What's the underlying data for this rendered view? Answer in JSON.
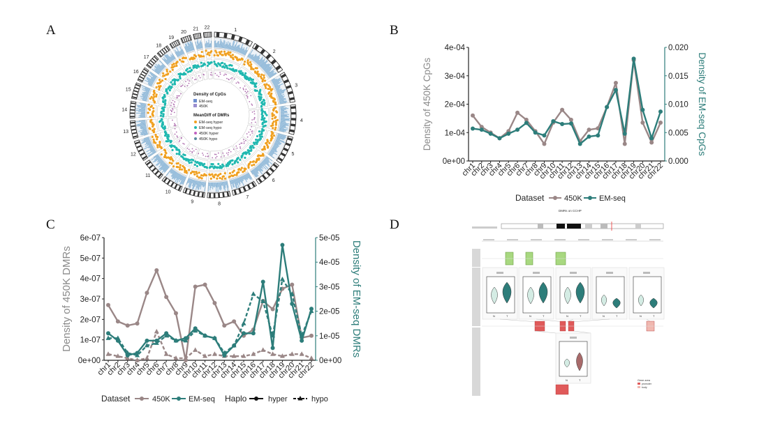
{
  "colors": {
    "k450": "#9a8787",
    "emseq": "#2d7d7a",
    "orange": "#f0a020",
    "lightblue": "#8fb8d8",
    "green": "#a8d880",
    "red": "#e05a5a",
    "pink": "#f0b8b0",
    "gray": "#d8d8d8"
  },
  "panels": {
    "A": "A",
    "B": "B",
    "C": "C",
    "D": "D"
  },
  "panelA": {
    "legend_title1": "Density of CpGs",
    "legend_items1": [
      "EM-seq",
      "450K"
    ],
    "legend_title2": "MeanDiff of DMRs",
    "legend_items2": [
      "EM-seq hyper",
      "EM-seq hypo",
      "450K hyper",
      "450K hypo"
    ],
    "chrom_labels": [
      "1",
      "2",
      "3",
      "4",
      "5",
      "6",
      "7",
      "8",
      "9",
      "10",
      "11",
      "12",
      "13",
      "14",
      "15",
      "16",
      "17",
      "18",
      "19",
      "20",
      "21",
      "22"
    ]
  },
  "chart_data": [
    {
      "type": "line",
      "panel": "B",
      "categories": [
        "chr1",
        "chr2",
        "chr3",
        "chr4",
        "chr5",
        "chr6",
        "chr7",
        "chr8",
        "chr9",
        "chr10",
        "chr11",
        "chr12",
        "chr13",
        "chr14",
        "chr15",
        "chr16",
        "chr17",
        "chr18",
        "chr19",
        "chr20",
        "chr21",
        "chr22"
      ],
      "series": [
        {
          "name": "450K",
          "axis": "left",
          "values": [
            0.00016,
            0.00012,
            0.0001,
            8e-05,
            0.000105,
            0.00017,
            0.000145,
            0.000105,
            6e-05,
            0.000135,
            0.00018,
            0.000145,
            7e-05,
            0.00011,
            0.000115,
            0.00019,
            0.000275,
            6e-05,
            0.000355,
            0.000135,
            6.5e-05,
            0.000135
          ]
        },
        {
          "name": "EM-seq",
          "axis": "right",
          "values": [
            0.0057,
            0.0055,
            0.0048,
            0.004,
            0.0048,
            0.0055,
            0.0067,
            0.005,
            0.0045,
            0.007,
            0.0065,
            0.0066,
            0.003,
            0.0043,
            0.0045,
            0.0095,
            0.0125,
            0.0048,
            0.018,
            0.009,
            0.004,
            0.0087
          ]
        }
      ],
      "ylabel_left": "Density of 450K CpGs",
      "ylabel_right": "Density of EM-seq CpGs",
      "ylim_left": [
        0,
        0.0004
      ],
      "ylim_right": [
        0,
        0.02
      ],
      "yticks_left": [
        "0e+00",
        "1e-04",
        "2e-04",
        "3e-04",
        "4e-04"
      ],
      "yticks_right": [
        "0.000",
        "0.005",
        "0.010",
        "0.015",
        "0.020"
      ],
      "legend_title": "Dataset",
      "legend": [
        "450K",
        "EM-seq"
      ]
    },
    {
      "type": "line",
      "panel": "C",
      "categories": [
        "chr1",
        "chr2",
        "chr3",
        "chr4",
        "chr5",
        "chr6",
        "chr7",
        "chr8",
        "chr9",
        "chr10",
        "chr11",
        "chr12",
        "chr13",
        "chr14",
        "chr15",
        "chr16",
        "chr17",
        "chr18",
        "chr19",
        "chr20",
        "chr21",
        "chr22"
      ],
      "series": [
        {
          "name": "450K hyper",
          "axis": "left",
          "style": "solid",
          "values": [
            2.7e-07,
            1.9e-07,
            1.7e-07,
            1.8e-07,
            3.3e-07,
            4.4e-07,
            3.1e-07,
            2.3e-07,
            0.0,
            3.6e-07,
            3.7e-07,
            2.8e-07,
            1.7e-07,
            1.9e-07,
            1.2e-07,
            1.5e-07,
            2.9e-07,
            2.5e-07,
            3.5e-07,
            3.7e-07,
            1.1e-07,
            1.2e-07
          ]
        },
        {
          "name": "450K hypo",
          "axis": "left",
          "style": "dashed",
          "values": [
            3e-08,
            2e-08,
            1e-08,
            0.0,
            1e-08,
            1.4e-07,
            3e-08,
            1e-08,
            1e-08,
            5e-08,
            2e-08,
            3e-08,
            2e-08,
            2e-08,
            2e-08,
            3e-08,
            5e-08,
            3e-08,
            2e-08,
            3e-08,
            3e-08,
            1e-08
          ]
        },
        {
          "name": "EM-seq hyper",
          "axis": "right",
          "style": "solid",
          "values": [
            1.1e-05,
            8e-06,
            2e-06,
            3e-06,
            8e-06,
            8e-06,
            1.1e-05,
            8e-06,
            9e-06,
            1.3e-05,
            1e-05,
            9e-06,
            2e-06,
            6e-06,
            1.1e-05,
            1.1e-05,
            3.2e-05,
            5e-06,
            4.7e-05,
            2.3e-05,
            8e-06,
            2.1e-05
          ]
        },
        {
          "name": "EM-seq hypo",
          "axis": "right",
          "style": "dashed",
          "values": [
            9e-06,
            9e-06,
            3e-06,
            2e-06,
            6e-06,
            7e-06,
            1e-05,
            8e-06,
            8e-06,
            1.2e-05,
            1e-05,
            9e-06,
            3e-06,
            6e-06,
            1.5e-05,
            2.7e-05,
            2.4e-05,
            1e-05,
            3.3e-05,
            2.7e-05,
            1e-05,
            2e-05
          ]
        }
      ],
      "ylabel_left": "Density of 450K DMRs",
      "ylabel_right": "Density of EM-seq DMRs",
      "ylim_left": [
        0,
        6e-07
      ],
      "ylim_right": [
        0,
        5e-05
      ],
      "yticks_left": [
        "0e+00",
        "1e-07",
        "2e-07",
        "3e-07",
        "4e-07",
        "5e-07",
        "6e-07"
      ],
      "yticks_right": [
        "0e+00",
        "1e-05",
        "2e-05",
        "3e-05",
        "4e-05",
        "5e-05"
      ],
      "legend_title": "Dataset",
      "legend": [
        "450K",
        "EM-seq"
      ],
      "legend2_title": "Haplo",
      "legend2": [
        "hyper",
        "hypo"
      ]
    }
  ],
  "panelD": {
    "title": "DMRs on CCHP",
    "sample_labels": [
      "N",
      "T"
    ],
    "legend_title": "Gene area",
    "legend_items": [
      "promoter",
      "body"
    ]
  }
}
